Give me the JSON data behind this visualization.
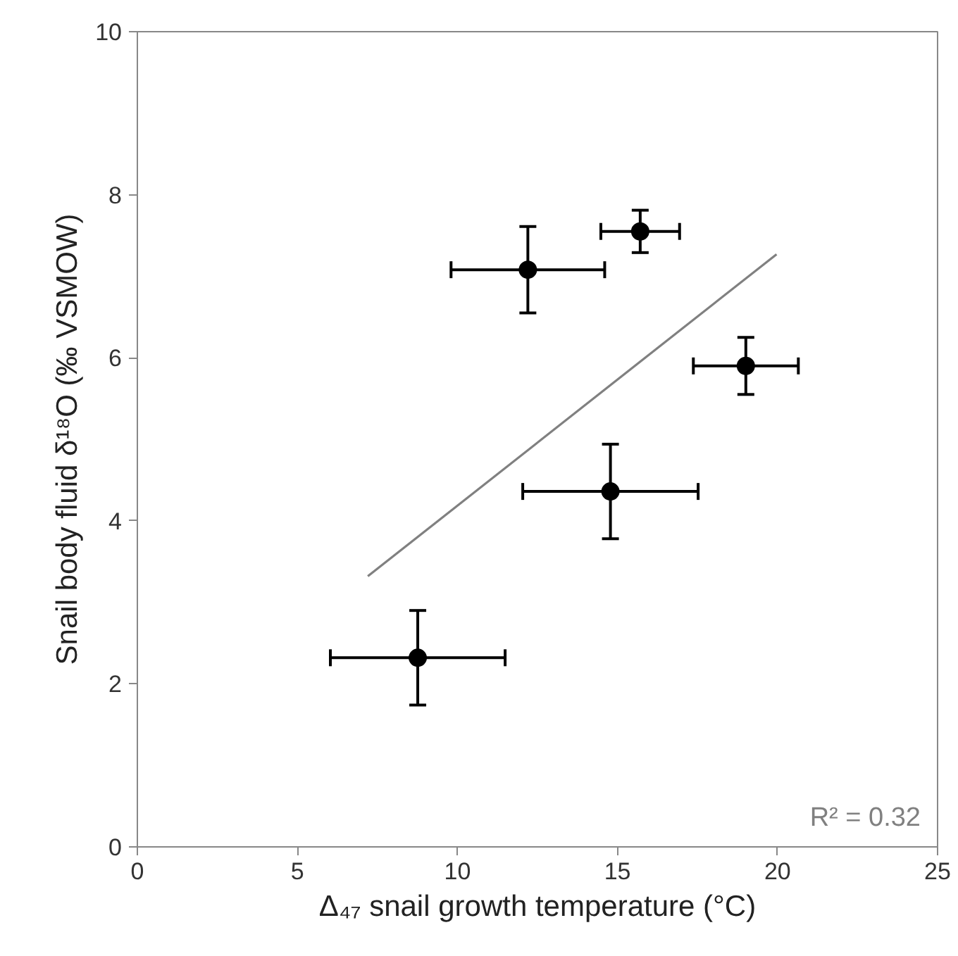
{
  "chart_data": {
    "type": "scatter",
    "xlabel": "Δ₄₇ snail growth temperature (°C)",
    "ylabel": "Snail body fluid δ¹⁸O (‰ VSMOW)",
    "xlim": [
      0,
      25
    ],
    "xticks": [
      0,
      5,
      10,
      15,
      20,
      25
    ],
    "ylim": [
      0,
      10
    ],
    "yticks": [
      0,
      2,
      4,
      6,
      8,
      10
    ],
    "grid": false,
    "annotations": [
      "R² = 0.32"
    ],
    "series": [
      {
        "marker": "circle",
        "color": "#000000",
        "x": [
          8.76,
          12.2,
          15.71,
          19.01,
          14.78
        ],
        "values": [
          2.32,
          7.08,
          7.55,
          5.9,
          4.36
        ],
        "errors": [
          0.58,
          0.53,
          0.26,
          0.35,
          0.58
        ],
        "xerrors": [
          2.73,
          2.4,
          1.23,
          1.64,
          2.74
        ]
      },
      {
        "type": "line",
        "color": "#808080",
        "x": [
          7.2,
          19.97
        ],
        "values": [
          3.32,
          7.27
        ]
      }
    ]
  }
}
